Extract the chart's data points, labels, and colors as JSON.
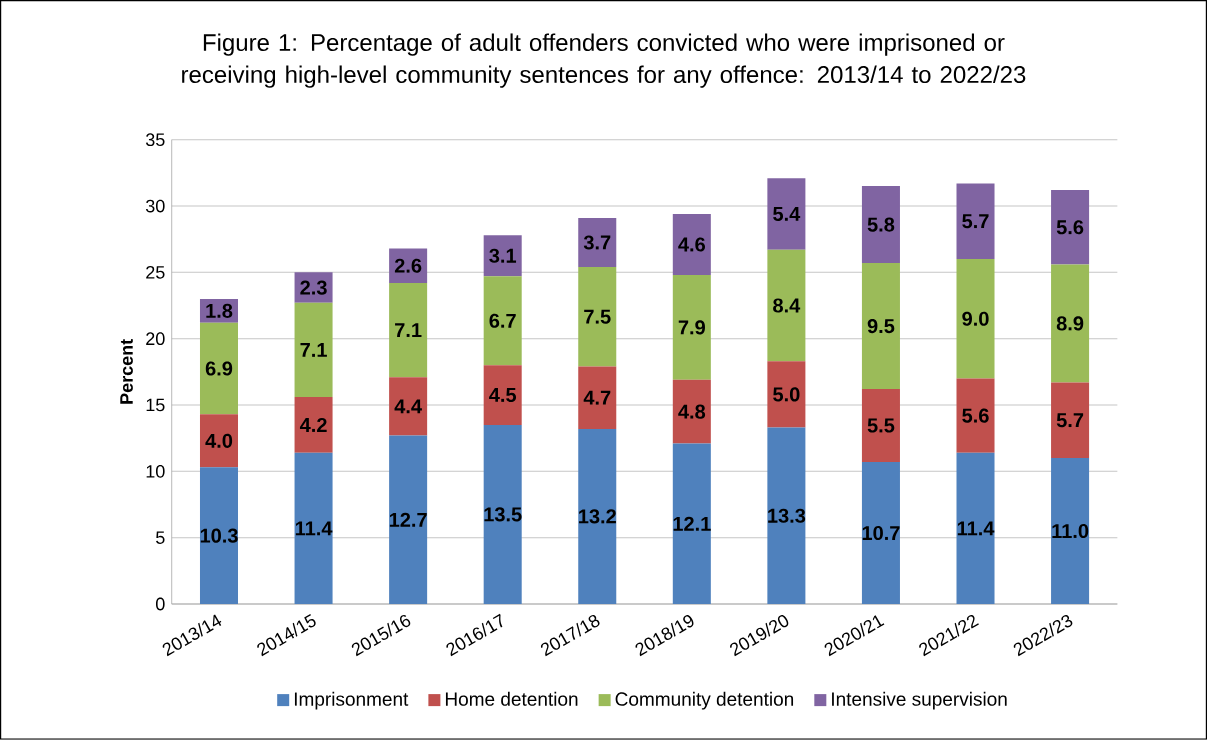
{
  "chart_data": {
    "type": "bar",
    "stacked": true,
    "title": "Figure 1: Percentage of adult offenders convicted who were imprisoned or receiving high-level community sentences for any offence: 2013/14 to 2022/23",
    "ylabel": "Percent",
    "categories": [
      "2013/14",
      "2014/15",
      "2015/16",
      "2016/17",
      "2017/18",
      "2018/19",
      "2019/20",
      "2020/21",
      "2021/22",
      "2022/23"
    ],
    "series": [
      {
        "name": "Imprisonment",
        "color": "#4f81bd",
        "values": [
          10.3,
          11.4,
          12.7,
          13.5,
          13.2,
          12.1,
          13.3,
          10.7,
          11.4,
          11.0
        ],
        "value_labels": [
          "10.3",
          "11.4",
          "12.7",
          "13.5",
          "13.2",
          "12.1",
          "13.3",
          "10.7",
          "11.4",
          "11.0"
        ]
      },
      {
        "name": "Home detention",
        "color": "#c0504d",
        "values": [
          4.0,
          4.2,
          4.4,
          4.5,
          4.7,
          4.8,
          5.0,
          5.5,
          5.6,
          5.7
        ],
        "value_labels": [
          "4.0",
          "4.2",
          "4.4",
          "4.5",
          "4.7",
          "4.8",
          "5.0",
          "5.5",
          "5.6",
          "5.7"
        ]
      },
      {
        "name": "Community detention",
        "color": "#9bbb59",
        "values": [
          6.9,
          7.1,
          7.1,
          6.7,
          7.5,
          7.9,
          8.4,
          9.5,
          9.0,
          8.9
        ],
        "value_labels": [
          "6.9",
          "7.1",
          "7.1",
          "6.7",
          "7.5",
          "7.9",
          "8.4",
          "9.5",
          "9.0",
          "8.9"
        ]
      },
      {
        "name": "Intensive supervision",
        "color": "#8064a2",
        "values": [
          1.8,
          2.3,
          2.6,
          3.1,
          3.7,
          4.6,
          5.4,
          5.8,
          5.7,
          5.6
        ],
        "value_labels": [
          "1.8",
          "2.3",
          "2.6",
          "3.1",
          "3.7",
          "4.6",
          "5.4",
          "5.8",
          "5.7",
          "5.6"
        ]
      }
    ],
    "ylim": [
      0,
      35
    ],
    "yticks": [
      0,
      5,
      10,
      15,
      20,
      25,
      30,
      35
    ],
    "grid": "y",
    "legend": "bottom"
  }
}
